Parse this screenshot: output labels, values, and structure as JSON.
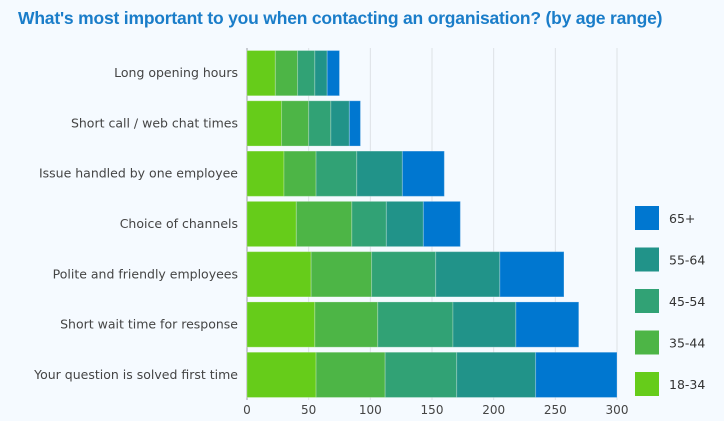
{
  "chart_data": {
    "type": "bar",
    "orientation": "horizontal",
    "stacked": true,
    "title": "What's most important to you when contacting an organisation? (by age range)",
    "xlabel": "",
    "ylabel": "",
    "xlim": [
      0,
      300
    ],
    "xticks": [
      0,
      50,
      100,
      150,
      200,
      250,
      300
    ],
    "grid": true,
    "legend_position": "right",
    "categories": [
      "Long opening hours",
      "Short call / web chat times",
      "Issue handled by one employee",
      "Choice of channels",
      "Polite and friendly employees",
      "Short wait time for response",
      "Your question is solved first time"
    ],
    "series": [
      {
        "name": "18-34",
        "color": "#66cc1a",
        "values": [
          23,
          28,
          30,
          40,
          52,
          55,
          56
        ]
      },
      {
        "name": "35-44",
        "color": "#4db546",
        "values": [
          18,
          22,
          26,
          45,
          49,
          51,
          56
        ]
      },
      {
        "name": "45-54",
        "color": "#31a275",
        "values": [
          14,
          18,
          33,
          28,
          52,
          61,
          58
        ]
      },
      {
        "name": "55-64",
        "color": "#219389",
        "values": [
          10,
          15,
          37,
          30,
          52,
          51,
          64
        ]
      },
      {
        "name": "65+",
        "color": "#0077d0",
        "values": [
          10,
          9,
          34,
          30,
          52,
          51,
          66
        ]
      }
    ],
    "legend_order": [
      "65+",
      "55-64",
      "45-54",
      "35-44",
      "18-34"
    ]
  }
}
